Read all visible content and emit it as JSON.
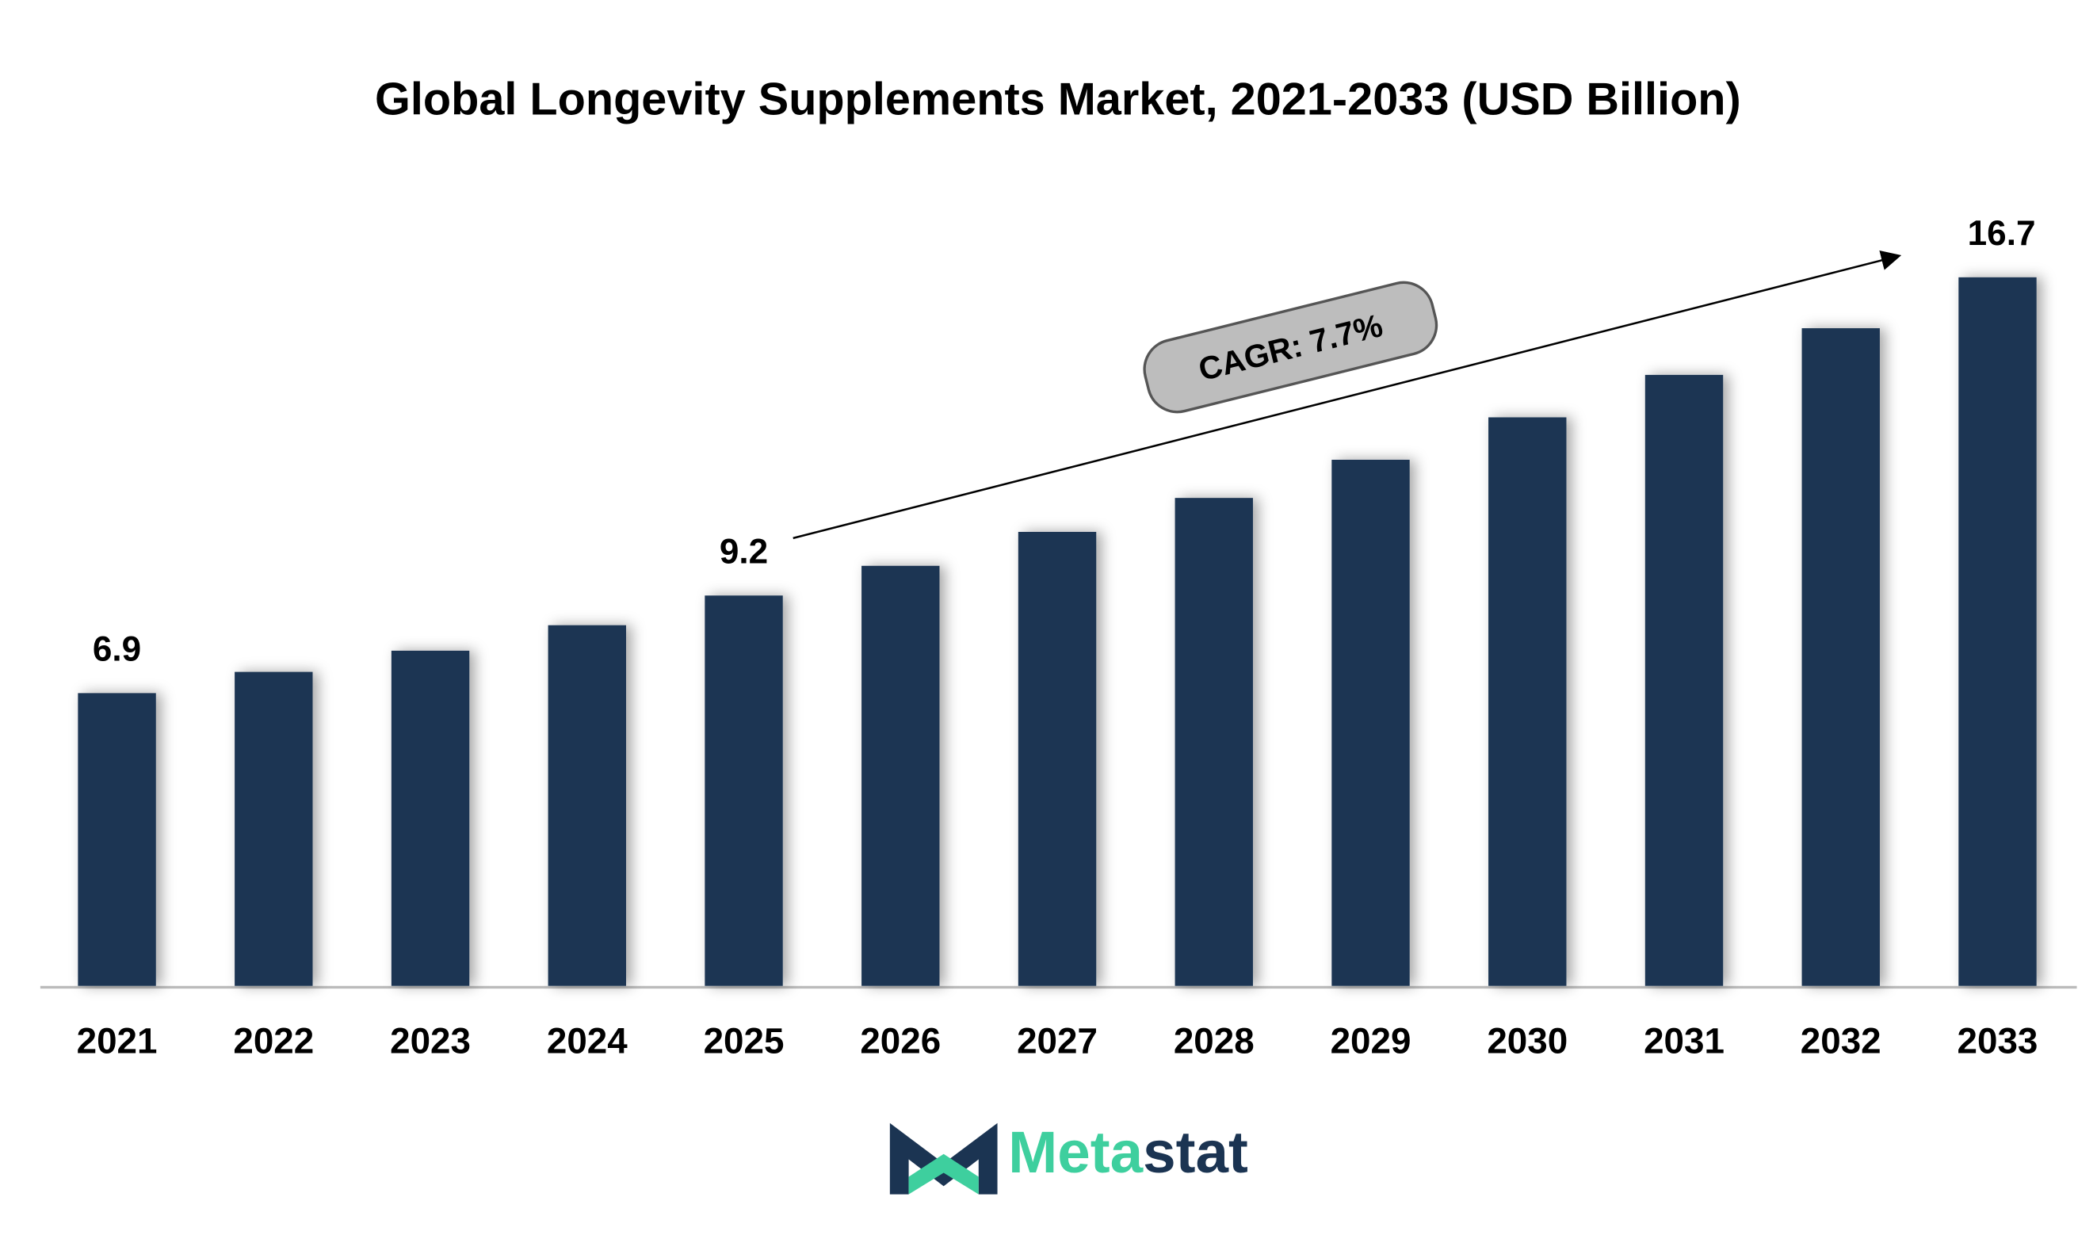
{
  "chart_data": {
    "type": "bar",
    "title": "Global Longevity Supplements Market, 2021-2033 (USD Billion)",
    "categories": [
      "2021",
      "2022",
      "2023",
      "2024",
      "2025",
      "2026",
      "2027",
      "2028",
      "2029",
      "2030",
      "2031",
      "2032",
      "2033"
    ],
    "values": [
      6.9,
      7.4,
      7.9,
      8.5,
      9.2,
      9.9,
      10.7,
      11.5,
      12.4,
      13.4,
      14.4,
      15.5,
      16.7
    ],
    "value_labels": [
      "6.9",
      null,
      null,
      null,
      "9.2",
      null,
      null,
      null,
      null,
      null,
      null,
      null,
      "16.7"
    ],
    "color": "#1b3452",
    "annotation": "CAGR: 7.7%",
    "brand": [
      "Meta",
      "stat"
    ]
  }
}
